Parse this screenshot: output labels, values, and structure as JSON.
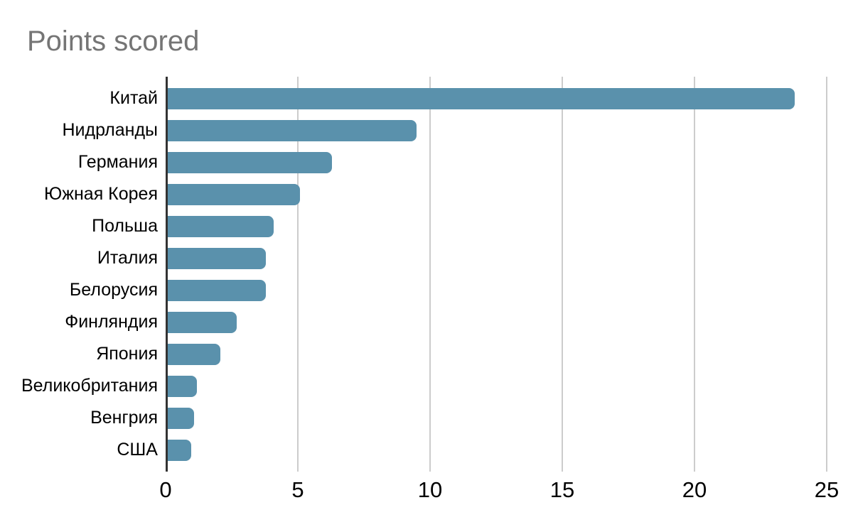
{
  "chart_data": {
    "type": "bar",
    "orientation": "horizontal",
    "title": "Points scored",
    "categories": [
      "Китай",
      "Нидрланды",
      "Германия",
      "Южная Корея",
      "Польша",
      "Италия",
      "Белорусия",
      "Финляндия",
      "Япония",
      "Великобритания",
      "Венгрия",
      "США"
    ],
    "values": [
      23.7,
      9.4,
      6.2,
      5,
      4,
      3.7,
      3.7,
      2.6,
      2,
      1.1,
      1,
      0.9
    ],
    "xlabel": "",
    "ylabel": "",
    "xlim": [
      0,
      25
    ],
    "xticks": [
      0,
      5,
      10,
      15,
      20,
      25
    ],
    "grid": true,
    "legend": false,
    "colors": {
      "bar": "#5a91ac",
      "gridline": "#cccccc",
      "axis_line": "#333333",
      "tick_label": "#000000",
      "category_label": "#000000",
      "title": "#757575",
      "background": "#ffffff"
    }
  }
}
